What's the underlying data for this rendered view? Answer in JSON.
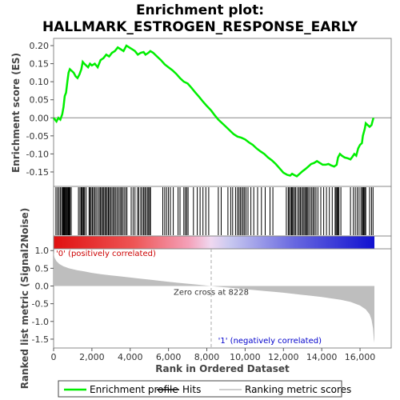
{
  "chart_data": {
    "type": "line",
    "title_line1": "Enrichment plot:",
    "title_line2": "HALLMARK_ESTROGEN_RESPONSE_EARLY",
    "xlabel": "Rank in Ordered Dataset",
    "ylabel_top": "Enrichment score (ES)",
    "ylabel_bottom": "Ranked list metric (Signal2Noise)",
    "xlim": [
      0,
      16750
    ],
    "x_ticks": [
      0,
      2000,
      4000,
      6000,
      8000,
      10000,
      12000,
      14000,
      16000
    ],
    "x_tick_labels": [
      "0",
      "2,000",
      "4,000",
      "6,000",
      "8,000",
      "10,000",
      "12,000",
      "14,000",
      "16,000"
    ],
    "es_ylim": [
      -0.19,
      0.22
    ],
    "es_ticks": [
      -0.15,
      -0.1,
      -0.05,
      0.0,
      0.05,
      0.1,
      0.15,
      0.2
    ],
    "es_tick_labels": [
      "-0.15",
      "-0.10",
      "-0.05",
      "0.00",
      "0.05",
      "0.10",
      "0.15",
      "0.20"
    ],
    "metric_ylim": [
      -1.75,
      1.05
    ],
    "metric_ticks": [
      -1.5,
      -1.0,
      -0.5,
      0.0,
      0.5,
      1.0
    ],
    "metric_tick_labels": [
      "-1.5",
      "-1.0",
      "-0.5",
      "0.0",
      "0.5",
      "1.0"
    ],
    "zero_cross": 8228,
    "zero_cross_label": "Zero cross at 8228",
    "pos_label": "'0' (positively correlated)",
    "neg_label": "'1' (negatively correlated)",
    "colors": {
      "es_line": "#00ee00",
      "hits": "#000000",
      "metric_fill": "#bebebe",
      "pos_label": "#cc0000",
      "neg_label": "#0000cc",
      "bar_red": "#e01010",
      "bar_blue": "#1010d0"
    },
    "legend": [
      {
        "label": "Enrichment profile",
        "icon": "green-line"
      },
      {
        "label": "Hits",
        "icon": "black-line"
      },
      {
        "label": "Ranking metric scores",
        "icon": "gray-line"
      }
    ],
    "es_points": [
      [
        0,
        0.0
      ],
      [
        150,
        -0.01
      ],
      [
        250,
        0.0
      ],
      [
        350,
        -0.005
      ],
      [
        450,
        0.01
      ],
      [
        520,
        0.03
      ],
      [
        580,
        0.06
      ],
      [
        650,
        0.07
      ],
      [
        720,
        0.1
      ],
      [
        780,
        0.125
      ],
      [
        850,
        0.135
      ],
      [
        950,
        0.13
      ],
      [
        1050,
        0.125
      ],
      [
        1150,
        0.115
      ],
      [
        1250,
        0.11
      ],
      [
        1350,
        0.12
      ],
      [
        1450,
        0.135
      ],
      [
        1520,
        0.155
      ],
      [
        1600,
        0.15
      ],
      [
        1700,
        0.145
      ],
      [
        1800,
        0.14
      ],
      [
        1900,
        0.15
      ],
      [
        2000,
        0.145
      ],
      [
        2150,
        0.15
      ],
      [
        2300,
        0.14
      ],
      [
        2450,
        0.16
      ],
      [
        2600,
        0.165
      ],
      [
        2750,
        0.175
      ],
      [
        2900,
        0.17
      ],
      [
        3050,
        0.18
      ],
      [
        3200,
        0.185
      ],
      [
        3350,
        0.195
      ],
      [
        3500,
        0.19
      ],
      [
        3650,
        0.185
      ],
      [
        3800,
        0.2
      ],
      [
        3950,
        0.195
      ],
      [
        4100,
        0.19
      ],
      [
        4250,
        0.185
      ],
      [
        4400,
        0.175
      ],
      [
        4550,
        0.18
      ],
      [
        4700,
        0.182
      ],
      [
        4800,
        0.175
      ],
      [
        4950,
        0.18
      ],
      [
        5050,
        0.185
      ],
      [
        5200,
        0.18
      ],
      [
        5400,
        0.17
      ],
      [
        5600,
        0.16
      ],
      [
        5800,
        0.148
      ],
      [
        6000,
        0.14
      ],
      [
        6200,
        0.132
      ],
      [
        6400,
        0.122
      ],
      [
        6600,
        0.11
      ],
      [
        6800,
        0.1
      ],
      [
        7000,
        0.095
      ],
      [
        7200,
        0.083
      ],
      [
        7400,
        0.07
      ],
      [
        7600,
        0.058
      ],
      [
        7800,
        0.045
      ],
      [
        8000,
        0.033
      ],
      [
        8228,
        0.02
      ],
      [
        8400,
        0.008
      ],
      [
        8600,
        -0.005
      ],
      [
        8800,
        -0.015
      ],
      [
        9000,
        -0.025
      ],
      [
        9200,
        -0.035
      ],
      [
        9400,
        -0.045
      ],
      [
        9600,
        -0.052
      ],
      [
        9800,
        -0.055
      ],
      [
        10000,
        -0.06
      ],
      [
        10200,
        -0.068
      ],
      [
        10400,
        -0.075
      ],
      [
        10600,
        -0.085
      ],
      [
        10800,
        -0.093
      ],
      [
        11000,
        -0.1
      ],
      [
        11200,
        -0.11
      ],
      [
        11400,
        -0.118
      ],
      [
        11600,
        -0.128
      ],
      [
        11800,
        -0.14
      ],
      [
        12000,
        -0.152
      ],
      [
        12200,
        -0.158
      ],
      [
        12350,
        -0.16
      ],
      [
        12450,
        -0.155
      ],
      [
        12550,
        -0.158
      ],
      [
        12700,
        -0.162
      ],
      [
        12850,
        -0.155
      ],
      [
        13000,
        -0.148
      ],
      [
        13150,
        -0.142
      ],
      [
        13300,
        -0.135
      ],
      [
        13450,
        -0.128
      ],
      [
        13600,
        -0.125
      ],
      [
        13750,
        -0.12
      ],
      [
        13900,
        -0.125
      ],
      [
        14050,
        -0.13
      ],
      [
        14200,
        -0.13
      ],
      [
        14350,
        -0.128
      ],
      [
        14500,
        -0.132
      ],
      [
        14650,
        -0.135
      ],
      [
        14780,
        -0.13
      ],
      [
        14850,
        -0.11
      ],
      [
        14950,
        -0.1
      ],
      [
        15050,
        -0.105
      ],
      [
        15200,
        -0.11
      ],
      [
        15350,
        -0.112
      ],
      [
        15500,
        -0.115
      ],
      [
        15600,
        -0.108
      ],
      [
        15700,
        -0.1
      ],
      [
        15800,
        -0.105
      ],
      [
        15900,
        -0.085
      ],
      [
        16000,
        -0.075
      ],
      [
        16100,
        -0.07
      ],
      [
        16150,
        -0.05
      ],
      [
        16250,
        -0.03
      ],
      [
        16300,
        -0.015
      ],
      [
        16400,
        -0.02
      ],
      [
        16500,
        -0.025
      ],
      [
        16600,
        -0.02
      ],
      [
        16700,
        0.0
      ]
    ],
    "hits": [
      120,
      200,
      280,
      350,
      420,
      470,
      510,
      540,
      570,
      600,
      640,
      680,
      720,
      760,
      790,
      820,
      860,
      920,
      1300,
      1380,
      1440,
      1490,
      1540,
      1580,
      1620,
      1700,
      1850,
      1900,
      1960,
      2020,
      2080,
      2150,
      2220,
      2300,
      2380,
      2440,
      2500,
      2560,
      2620,
      2680,
      2740,
      2800,
      2860,
      2920,
      2980,
      3050,
      3120,
      3180,
      3250,
      3320,
      3400,
      3470,
      3540,
      3600,
      3680,
      3760,
      3830,
      4050,
      4150,
      4250,
      4380,
      4450,
      4550,
      4620,
      4700,
      4760,
      4820,
      4900,
      4960,
      5020,
      5060,
      5700,
      5800,
      5900,
      6000,
      6100,
      6250,
      6500,
      6600,
      6800,
      6880,
      6950,
      7020,
      7300,
      7500,
      7650,
      7800,
      7950,
      8100,
      8600,
      8750,
      9100,
      9250,
      9350,
      9500,
      9600,
      9680,
      9750,
      9830,
      9900,
      9970,
      10050,
      10150,
      10300,
      10450,
      10650,
      10850,
      11050,
      11300,
      11450,
      12150,
      12250,
      12300,
      12380,
      12430,
      12480,
      12520,
      12600,
      12650,
      12750,
      12820,
      12880,
      12950,
      13020,
      13080,
      13150,
      13200,
      13250,
      13320,
      13400,
      13480,
      13550,
      13620,
      13700,
      13800,
      13950,
      14100,
      14250,
      14400,
      14550,
      14700,
      14750,
      14800,
      14850,
      14900,
      15000,
      15500,
      15650,
      15750,
      15850,
      15950,
      16050,
      16120,
      16160,
      16200,
      16250,
      16300,
      16500,
      16600,
      16680
    ],
    "metric_points": [
      [
        0,
        0.95
      ],
      [
        50,
        0.8
      ],
      [
        150,
        0.7
      ],
      [
        300,
        0.62
      ],
      [
        500,
        0.56
      ],
      [
        800,
        0.5
      ],
      [
        1200,
        0.45
      ],
      [
        1600,
        0.41
      ],
      [
        2000,
        0.37
      ],
      [
        2500,
        0.33
      ],
      [
        3000,
        0.3
      ],
      [
        3500,
        0.27
      ],
      [
        4000,
        0.24
      ],
      [
        4500,
        0.21
      ],
      [
        5000,
        0.18
      ],
      [
        5500,
        0.15
      ],
      [
        6000,
        0.12
      ],
      [
        6500,
        0.09
      ],
      [
        7000,
        0.065
      ],
      [
        7500,
        0.04
      ],
      [
        8000,
        0.012
      ],
      [
        8228,
        0.0
      ],
      [
        8500,
        -0.015
      ],
      [
        9000,
        -0.04
      ],
      [
        9500,
        -0.065
      ],
      [
        10000,
        -0.09
      ],
      [
        10500,
        -0.115
      ],
      [
        11000,
        -0.14
      ],
      [
        11500,
        -0.165
      ],
      [
        12000,
        -0.19
      ],
      [
        12500,
        -0.22
      ],
      [
        13000,
        -0.25
      ],
      [
        13500,
        -0.28
      ],
      [
        14000,
        -0.31
      ],
      [
        14500,
        -0.35
      ],
      [
        15000,
        -0.39
      ],
      [
        15500,
        -0.45
      ],
      [
        16000,
        -0.55
      ],
      [
        16300,
        -0.66
      ],
      [
        16500,
        -0.8
      ],
      [
        16600,
        -0.95
      ],
      [
        16680,
        -1.2
      ],
      [
        16720,
        -1.5
      ],
      [
        16750,
        -1.6
      ]
    ]
  }
}
